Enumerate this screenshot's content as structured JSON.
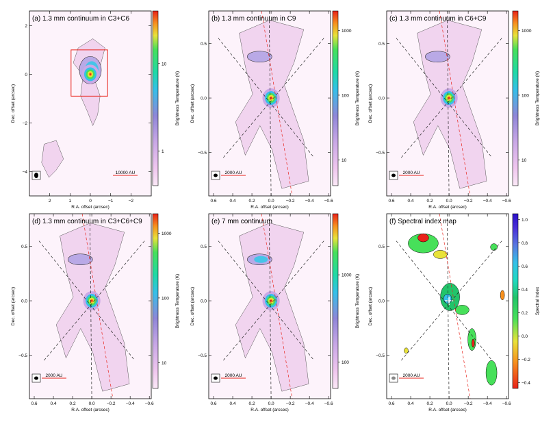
{
  "figure": {
    "type": "multi-panel astronomical continuum maps",
    "colors": {
      "axis": "#000000",
      "annotation": "#e8221a",
      "background": "#fdf3fb"
    }
  },
  "chart_data": [
    {
      "type": "heatmap",
      "panel": "a",
      "title": "(a) 1.3 mm continuum in C3+C6",
      "xlabel": "R.A. offset (arcsec)",
      "ylabel": "Dec. offset (arcsec)",
      "xlim": [
        3.0,
        -3.0
      ],
      "ylim": [
        -5.0,
        2.6
      ],
      "xticks": [
        2,
        1,
        0,
        -1,
        -2
      ],
      "xticklabels": [
        "2",
        "1",
        "0",
        "−1",
        "−2"
      ],
      "yticks": [
        2,
        0,
        -2,
        -4
      ],
      "yticklabels": [
        "2",
        "0",
        "−2",
        "−4"
      ],
      "colorbar": {
        "label": "Brightness Temperature (K)",
        "scale": "log",
        "min": 0.4,
        "max": 40,
        "ticks": [
          1,
          10
        ],
        "ticklabels": [
          "1",
          "10"
        ],
        "colormap": "rainbow-white"
      },
      "scalebar": "10000 AU",
      "box_arcsec": {
        "ra": [
          0.95,
          -0.85
        ],
        "dec": [
          1.0,
          -0.9
        ]
      },
      "peak_K": 40
    },
    {
      "type": "heatmap",
      "panel": "b",
      "title": "(b) 1.3 mm continuum in C9",
      "xlabel": "R.A. offset (arcsec)",
      "ylabel": "Dec. offset (arcsec)",
      "xlim": [
        0.65,
        -0.62
      ],
      "ylim": [
        -0.9,
        0.8
      ],
      "xticks": [
        0.6,
        0.4,
        0.2,
        0.0,
        -0.2,
        -0.4,
        -0.6
      ],
      "xticklabels": [
        "0.6",
        "0.4",
        "0.2",
        "0.0",
        "−0.2",
        "−0.4",
        "−0.6"
      ],
      "yticks": [
        0.5,
        0.0,
        -0.5
      ],
      "yticklabels": [
        "0.5",
        "0.0",
        "−0.5"
      ],
      "colorbar": {
        "label": "Brightness Temperature (K)",
        "scale": "log",
        "min": 4,
        "max": 2000,
        "ticks": [
          10,
          100,
          1000
        ],
        "ticklabels": [
          "10",
          "100",
          "1000"
        ],
        "colormap": "rainbow-white"
      },
      "scalebar": "2000 AU",
      "peak_K": 2000
    },
    {
      "type": "heatmap",
      "panel": "c",
      "title": "(c) 1.3 mm continuum in C6+C9",
      "xlabel": "R.A. offset (arcsec)",
      "ylabel": "Dec. offset (arcsec)",
      "xlim": [
        0.65,
        -0.62
      ],
      "ylim": [
        -0.9,
        0.8
      ],
      "xticks": [
        0.6,
        0.4,
        0.2,
        0.0,
        -0.2,
        -0.4,
        -0.6
      ],
      "xticklabels": [
        "0.6",
        "0.4",
        "0.2",
        "0.0",
        "−0.2",
        "−0.4",
        "−0.6"
      ],
      "yticks": [
        0.5,
        0.0,
        -0.5
      ],
      "yticklabels": [
        "0.5",
        "0.0",
        "−0.5"
      ],
      "colorbar": {
        "label": "Brightness Temperature (K)",
        "scale": "log",
        "min": 4,
        "max": 2000,
        "ticks": [
          10,
          100,
          1000
        ],
        "ticklabels": [
          "10",
          "100",
          "1000"
        ],
        "colormap": "rainbow-white"
      },
      "scalebar": "2000 AU",
      "peak_K": 2000
    },
    {
      "type": "heatmap",
      "panel": "d",
      "title": "(d) 1.3 mm continuum in C3+C6+C9",
      "xlabel": "R.A. offset (arcsec)",
      "ylabel": "Dec. offset (arcsec)",
      "xlim": [
        0.65,
        -0.62
      ],
      "ylim": [
        -0.9,
        0.8
      ],
      "xticks": [
        0.6,
        0.4,
        0.2,
        0.0,
        -0.2,
        -0.4,
        -0.6
      ],
      "xticklabels": [
        "0.6",
        "0.4",
        "0.2",
        "0.0",
        "−0.2",
        "−0.4",
        "−0.6"
      ],
      "yticks": [
        0.5,
        0.0,
        -0.5
      ],
      "yticklabels": [
        "0.5",
        "0.0",
        "−0.5"
      ],
      "colorbar": {
        "label": "Brightness Temperature (K)",
        "scale": "log",
        "min": 4,
        "max": 2000,
        "ticks": [
          10,
          100,
          1000
        ],
        "ticklabels": [
          "10",
          "100",
          "1000"
        ],
        "colormap": "rainbow-white"
      },
      "scalebar": "2000 AU",
      "peak_K": 2000
    },
    {
      "type": "heatmap",
      "panel": "e",
      "title": "(e) 7 mm continuum",
      "xlabel": "R.A. offset (arcsec)",
      "ylabel": "Dec. offset (arcsec)",
      "xlim": [
        0.65,
        -0.62
      ],
      "ylim": [
        -0.9,
        0.8
      ],
      "xticks": [
        0.6,
        0.4,
        0.2,
        0.0,
        -0.2,
        -0.4,
        -0.6
      ],
      "xticklabels": [
        "0.6",
        "0.4",
        "0.2",
        "0.0",
        "−0.2",
        "−0.4",
        "−0.6"
      ],
      "yticks": [
        0.5,
        0.0,
        -0.5
      ],
      "yticklabels": [
        "0.5",
        "0.0",
        "−0.5"
      ],
      "colorbar": {
        "label": "Brightness Temperature (K)",
        "scale": "log",
        "min": 50,
        "max": 5000,
        "ticks": [
          100,
          1000
        ],
        "ticklabels": [
          "100",
          "1000"
        ],
        "colormap": "rainbow-white"
      },
      "scalebar": "2000 AU",
      "peak_K": 5000
    },
    {
      "type": "heatmap",
      "panel": "f",
      "title": "(f) Spectral index map",
      "xlabel": "R.A. offset (arcsec)",
      "ylabel": "Dec. offset (arcsec)",
      "xlim": [
        0.65,
        -0.62
      ],
      "ylim": [
        -0.9,
        0.8
      ],
      "xticks": [
        0.6,
        0.4,
        0.2,
        0.0,
        -0.2,
        -0.4,
        -0.6
      ],
      "xticklabels": [
        "0.6",
        "0.4",
        "0.2",
        "0.0",
        "−0.2",
        "−0.4",
        "−0.6"
      ],
      "yticks": [
        0.5,
        0.0,
        -0.5
      ],
      "yticklabels": [
        "0.5",
        "0.0",
        "−0.5"
      ],
      "colorbar": {
        "label": "Spectral Index",
        "scale": "linear",
        "min": -0.45,
        "max": 1.05,
        "ticks": [
          -0.4,
          -0.2,
          0.0,
          0.2,
          0.4,
          0.6,
          0.8,
          1.0
        ],
        "ticklabels": [
          "−0.4",
          "−0.2",
          "0.0",
          "0.2",
          "0.4",
          "0.6",
          "0.8",
          "1.0"
        ],
        "colormap": "spectral-index"
      },
      "scalebar": "2000 AU",
      "source_marker": "+"
    }
  ]
}
